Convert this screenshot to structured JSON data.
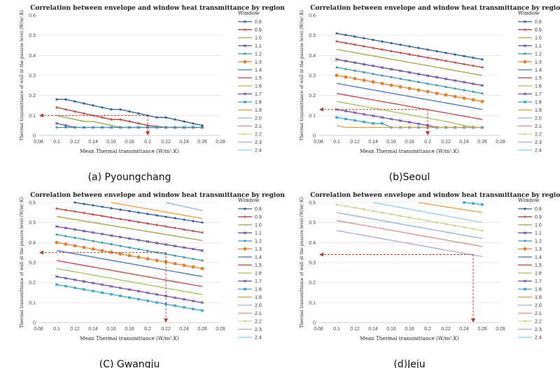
{
  "window_heat_transmittance": [
    "0.8",
    "0.9",
    "1.0",
    "1.1",
    "1.2",
    "1.3",
    "1.4",
    "1.5",
    "1.6",
    "1.7",
    "1.8",
    "1.9",
    "2.0",
    "2.1",
    "2.2",
    "2.3",
    "2.4"
  ],
  "series_colors": [
    "#2E5E9E",
    "#B83330",
    "#8EAD3E",
    "#6A4C9C",
    "#3B9BB6",
    "#E2822C",
    "#3F73C2",
    "#C8403D",
    "#9DC34F",
    "#6F4FA6",
    "#39A8CC",
    "#F29A3A",
    "#92AEDB",
    "#DB8C88",
    "#C2D98E",
    "#B6A5D1",
    "#8DCFE6"
  ],
  "marker_types": [
    "dot",
    "plus",
    "none",
    "x",
    "dot",
    "circle",
    "none",
    "none",
    "none",
    "x",
    "square",
    "none",
    "none",
    "none",
    "dot",
    "none",
    "none"
  ],
  "chart_data": [
    {
      "type": "line",
      "caption": "(a) Pyoungchang",
      "title": "Correlation between envelope and window heat transmittance by region",
      "xlabel": "Mean Thermal transmittance  (W/m².K)",
      "ylabel": "Thermal transmittance of wall at the passive level (W/m².K)",
      "xlim": [
        0.08,
        0.28
      ],
      "ylim": [
        0,
        0.6
      ],
      "xticks": [
        "0.08",
        "0.1",
        "0.12",
        "0.14",
        "0.16",
        "0.18",
        "0.2",
        "0.22",
        "0.24",
        "0.26",
        "0.28"
      ],
      "yticks": [
        "0",
        "0.1",
        "0.2",
        "0.3",
        "0.4",
        "0.5",
        "0.6"
      ],
      "legend_title": "Window",
      "series": [
        {
          "name": "0.8",
          "points": [
            [
              0.1,
              0.18
            ],
            [
              0.11,
              0.18
            ],
            [
              0.12,
              0.17
            ],
            [
              0.14,
              0.15
            ],
            [
              0.16,
              0.13
            ],
            [
              0.17,
              0.13
            ],
            [
              0.18,
              0.12
            ],
            [
              0.2,
              0.1
            ],
            [
              0.21,
              0.09
            ],
            [
              0.22,
              0.09
            ],
            [
              0.24,
              0.07
            ],
            [
              0.26,
              0.05
            ]
          ]
        },
        {
          "name": "0.9",
          "points": [
            [
              0.1,
              0.14
            ],
            [
              0.12,
              0.12
            ],
            [
              0.14,
              0.1
            ],
            [
              0.16,
              0.08
            ],
            [
              0.17,
              0.08
            ],
            [
              0.18,
              0.07
            ],
            [
              0.2,
              0.05
            ],
            [
              0.22,
              0.04
            ],
            [
              0.26,
              0.04
            ]
          ]
        },
        {
          "name": "1.0",
          "points": [
            [
              0.1,
              0.1
            ],
            [
              0.12,
              0.08
            ],
            [
              0.13,
              0.07
            ],
            [
              0.14,
              0.07
            ],
            [
              0.16,
              0.05
            ],
            [
              0.17,
              0.04
            ],
            [
              0.26,
              0.04
            ]
          ]
        },
        {
          "name": "1.1",
          "points": [
            [
              0.1,
              0.06
            ],
            [
              0.12,
              0.04
            ],
            [
              0.26,
              0.04
            ]
          ]
        },
        {
          "name": "1.2",
          "points": [
            [
              0.1,
              0.04
            ],
            [
              0.26,
              0.04
            ]
          ]
        }
      ],
      "guide": {
        "x": 0.2,
        "y": 0.1
      }
    },
    {
      "type": "line",
      "caption": "(b)Seoul",
      "title": "Correlation between envelope and window heat transmittance by region",
      "xlabel": "Mean Thermal transmittance  (W/m².K)",
      "ylabel": "Thermal transmittance of wall at the passive level (W/m².K)",
      "xlim": [
        0.08,
        0.28
      ],
      "ylim": [
        0,
        0.6
      ],
      "xticks": [
        "0.08",
        "0.1",
        "0.12",
        "0.14",
        "0.16",
        "0.18",
        "0.2",
        "0.22",
        "0.24",
        "0.26",
        "0.28"
      ],
      "yticks": [
        "0",
        "0.1",
        "0.2",
        "0.3",
        "0.4",
        "0.5",
        "0.6"
      ],
      "legend_title": "Window",
      "series": [
        {
          "name": "0.8",
          "points": [
            [
              0.1,
              0.51
            ],
            [
              0.26,
              0.38
            ]
          ]
        },
        {
          "name": "0.9",
          "points": [
            [
              0.1,
              0.47
            ],
            [
              0.26,
              0.34
            ]
          ]
        },
        {
          "name": "1.0",
          "points": [
            [
              0.1,
              0.43
            ],
            [
              0.26,
              0.3
            ]
          ]
        },
        {
          "name": "1.1",
          "points": [
            [
              0.1,
              0.38
            ],
            [
              0.26,
              0.25
            ]
          ]
        },
        {
          "name": "1.2",
          "points": [
            [
              0.1,
              0.34
            ],
            [
              0.26,
              0.21
            ]
          ]
        },
        {
          "name": "1.3",
          "points": [
            [
              0.1,
              0.3
            ],
            [
              0.26,
              0.17
            ]
          ]
        },
        {
          "name": "1.4",
          "points": [
            [
              0.1,
              0.26
            ],
            [
              0.26,
              0.13
            ]
          ]
        },
        {
          "name": "1.5",
          "points": [
            [
              0.1,
              0.21
            ],
            [
              0.26,
              0.08
            ]
          ]
        },
        {
          "name": "1.6",
          "points": [
            [
              0.1,
              0.17
            ],
            [
              0.22,
              0.07
            ],
            [
              0.24,
              0.05
            ],
            [
              0.25,
              0.04
            ],
            [
              0.26,
              0.04
            ]
          ]
        },
        {
          "name": "1.7",
          "points": [
            [
              0.1,
              0.13
            ],
            [
              0.2,
              0.05
            ],
            [
              0.21,
              0.04
            ],
            [
              0.26,
              0.04
            ]
          ]
        },
        {
          "name": "1.8",
          "points": [
            [
              0.1,
              0.09
            ],
            [
              0.14,
              0.06
            ],
            [
              0.15,
              0.06
            ],
            [
              0.16,
              0.04
            ],
            [
              0.26,
              0.04
            ]
          ]
        },
        {
          "name": "1.9",
          "points": [
            [
              0.1,
              0.05
            ],
            [
              0.11,
              0.04
            ],
            [
              0.26,
              0.04
            ]
          ]
        }
      ],
      "guide": {
        "x": 0.2,
        "y": 0.13
      }
    },
    {
      "type": "line",
      "caption": "(C) Gwangju",
      "title": "Correlation between envelope and window heat transmittance by region",
      "xlabel": "Mean Thermal transmittance  (W/m².K)",
      "ylabel": "Thermal transmittance of wall at the passive level (W/m².K)",
      "xlim": [
        0.08,
        0.28
      ],
      "ylim": [
        0,
        0.6
      ],
      "xticks": [
        "0.08",
        "0.1",
        "0.12",
        "0.14",
        "0.16",
        "0.18",
        "0.2",
        "0.22",
        "0.24",
        "0.26",
        "0.28"
      ],
      "yticks": [
        "0",
        "0.1",
        "0.2",
        "0.3",
        "0.4",
        "0.5",
        "0.6"
      ],
      "legend_title": "Window",
      "series": [
        {
          "name": "0.8",
          "points": [
            [
              0.12,
              0.6
            ],
            [
              0.26,
              0.5
            ]
          ]
        },
        {
          "name": "0.9",
          "points": [
            [
              0.1,
              0.57
            ],
            [
              0.26,
              0.45
            ]
          ]
        },
        {
          "name": "1.0",
          "points": [
            [
              0.1,
              0.53
            ],
            [
              0.26,
              0.41
            ]
          ]
        },
        {
          "name": "1.1",
          "points": [
            [
              0.1,
              0.48
            ],
            [
              0.26,
              0.36
            ]
          ]
        },
        {
          "name": "1.2",
          "points": [
            [
              0.1,
              0.44
            ],
            [
              0.26,
              0.31
            ]
          ]
        },
        {
          "name": "1.3",
          "points": [
            [
              0.1,
              0.4
            ],
            [
              0.26,
              0.27
            ]
          ]
        },
        {
          "name": "1.4",
          "points": [
            [
              0.1,
              0.36
            ],
            [
              0.26,
              0.23
            ]
          ]
        },
        {
          "name": "1.5",
          "points": [
            [
              0.1,
              0.31
            ],
            [
              0.26,
              0.18
            ]
          ]
        },
        {
          "name": "1.6",
          "points": [
            [
              0.1,
              0.27
            ],
            [
              0.26,
              0.14
            ]
          ]
        },
        {
          "name": "1.7",
          "points": [
            [
              0.1,
              0.23
            ],
            [
              0.26,
              0.1
            ]
          ]
        },
        {
          "name": "1.8",
          "points": [
            [
              0.1,
              0.19
            ],
            [
              0.26,
              0.06
            ]
          ]
        },
        {
          "name": "1.9",
          "points": [
            [
              0.16,
              0.6
            ],
            [
              0.26,
              0.52
            ]
          ]
        },
        {
          "name": "2.0",
          "points": [
            [
              0.22,
              0.6
            ],
            [
              0.26,
              0.56
            ]
          ]
        }
      ],
      "guide": {
        "x": 0.22,
        "y": 0.35
      }
    },
    {
      "type": "line",
      "caption": "(d)Jeju",
      "title": "Correlation between envelope and window heat transmittance by region",
      "xlabel": "Mean Thermal transmittance  (W/m².K)",
      "ylabel": "Thermal transmittance of wall at the passive level (W/m².K)",
      "xlim": [
        0.08,
        0.28
      ],
      "ylim": [
        0,
        0.6
      ],
      "xticks": [
        "0.08",
        "0.1",
        "0.12",
        "0.14",
        "0.16",
        "0.18",
        "0.2",
        "0.22",
        "0.24",
        "0.26",
        "0.28"
      ],
      "yticks": [
        "0",
        "0.1",
        "0.2",
        "0.3",
        "0.4",
        "0.5",
        "0.6"
      ],
      "legend_title": "Window",
      "series": [
        {
          "name": "1.9",
          "points": [
            [
              0.19,
              0.6
            ],
            [
              0.26,
              0.55
            ]
          ]
        },
        {
          "name": "2.0",
          "points": [
            [
              0.1,
              0.55
            ],
            [
              0.26,
              0.42
            ]
          ]
        },
        {
          "name": "2.1",
          "points": [
            [
              0.1,
              0.51
            ],
            [
              0.26,
              0.38
            ]
          ]
        },
        {
          "name": "2.2",
          "points": [
            [
              0.1,
              0.59
            ],
            [
              0.26,
              0.46
            ]
          ]
        },
        {
          "name": "2.3",
          "points": [
            [
              0.1,
              0.46
            ],
            [
              0.26,
              0.33
            ]
          ]
        },
        {
          "name": "2.4",
          "points": [
            [
              0.14,
              0.6
            ],
            [
              0.26,
              0.5
            ]
          ]
        },
        {
          "name": "1.8",
          "points": [
            [
              0.24,
              0.6
            ],
            [
              0.26,
              0.59
            ]
          ]
        }
      ],
      "guide": {
        "x": 0.25,
        "y": 0.34
      }
    }
  ]
}
